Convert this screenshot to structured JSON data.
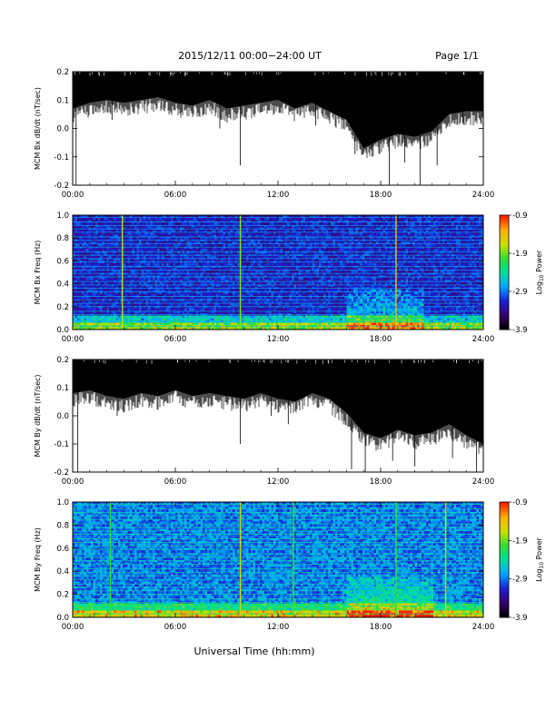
{
  "header": {
    "title": "2015/12/11  00:00−24:00 UT",
    "page": "Page 1/1"
  },
  "x_axis": {
    "label": "Universal Time (hh:mm)",
    "ticks": [
      "00:00",
      "06:00",
      "12:00",
      "18:00",
      "24:00"
    ]
  },
  "colors": {
    "trace": "#000000",
    "colormap": [
      "#000000",
      "#3a006e",
      "#1a1fd6",
      "#00a6ff",
      "#00e0a0",
      "#33dd33",
      "#c8e000",
      "#ffb000",
      "#ff2000"
    ]
  },
  "colorbar": {
    "ticks": [
      "-0.9",
      "-1.9",
      "-2.9",
      "-3.9"
    ],
    "label_prefix": "Log",
    "label_sub": "10",
    "label_suffix": " Power"
  },
  "chart_data": [
    {
      "type": "line",
      "ylabel": "MCM Bx dB/dt (nT/sec)",
      "xlim": [
        0,
        24
      ],
      "ylim": [
        -0.2,
        0.2
      ],
      "yticks": [
        "0.2",
        "0.1",
        "0.0",
        "-0.1",
        "-0.2"
      ],
      "grid": false,
      "upper_envelope": 0.2,
      "lower_envelope": {
        "x": [
          0,
          1,
          2,
          3,
          4,
          5,
          6,
          7,
          8,
          9,
          10,
          11,
          12,
          13,
          14,
          15,
          16,
          17,
          18,
          19,
          20,
          21,
          22,
          23,
          24
        ],
        "y": [
          0.07,
          0.09,
          0.1,
          0.09,
          0.1,
          0.11,
          0.09,
          0.08,
          0.1,
          0.07,
          0.08,
          0.09,
          0.1,
          0.07,
          0.09,
          0.06,
          0.03,
          -0.07,
          -0.04,
          -0.02,
          -0.03,
          -0.01,
          0.05,
          0.06,
          0.06
        ]
      },
      "spikes": [
        {
          "x": 0.2,
          "y": -0.2
        },
        {
          "x": 2.3,
          "y": 0.03
        },
        {
          "x": 4.2,
          "y": 0.06
        },
        {
          "x": 8.6,
          "y": 0.0
        },
        {
          "x": 9.8,
          "y": -0.13
        },
        {
          "x": 14.2,
          "y": 0.01
        },
        {
          "x": 16.5,
          "y": -0.09
        },
        {
          "x": 17.5,
          "y": -0.1
        },
        {
          "x": 18.5,
          "y": -0.2
        },
        {
          "x": 19.4,
          "y": -0.12
        },
        {
          "x": 20.3,
          "y": -0.2
        },
        {
          "x": 21.3,
          "y": -0.13
        },
        {
          "x": 22.8,
          "y": 0.02
        }
      ]
    },
    {
      "type": "heatmap",
      "ylabel": "MCM Bx Freq (Hz)",
      "xlim": [
        0,
        24
      ],
      "ylim": [
        0.0,
        1.0
      ],
      "yticks": [
        "1.0",
        "0.8",
        "0.6",
        "0.4",
        "0.2",
        "0.0"
      ],
      "zlim": [
        -3.9,
        -0.9
      ],
      "background_level": -3.2,
      "harmonic_line_freqs": [
        0.03,
        0.07,
        0.1,
        0.13,
        0.16,
        0.2,
        0.23,
        0.26,
        0.29,
        0.33,
        0.36,
        0.39,
        0.42,
        0.46,
        0.49,
        0.52,
        0.55,
        0.59,
        0.62,
        0.65,
        0.68,
        0.72,
        0.75,
        0.78,
        0.81,
        0.85,
        0.88,
        0.91,
        0.94,
        0.98
      ],
      "vertical_events": [
        {
          "t": 2.9,
          "level": -1.6
        },
        {
          "t": 9.8,
          "level": -1.8
        },
        {
          "t": 18.9,
          "level": -1.4
        }
      ],
      "active_interval": [
        16.0,
        20.5
      ]
    },
    {
      "type": "line",
      "ylabel": "MCM By dB/dt (nT/sec)",
      "xlim": [
        0,
        24
      ],
      "ylim": [
        -0.2,
        0.2
      ],
      "yticks": [
        "0.2",
        "0.1",
        "0.0",
        "-0.1",
        "-0.2"
      ],
      "grid": false,
      "upper_envelope": 0.2,
      "lower_envelope": {
        "x": [
          0,
          1,
          2,
          3,
          4,
          5,
          6,
          7,
          8,
          9,
          10,
          11,
          12,
          13,
          14,
          15,
          16,
          17,
          18,
          19,
          20,
          21,
          22,
          23,
          24
        ],
        "y": [
          0.08,
          0.09,
          0.07,
          0.06,
          0.08,
          0.07,
          0.09,
          0.07,
          0.08,
          0.07,
          0.06,
          0.08,
          0.06,
          0.05,
          0.08,
          0.06,
          0.01,
          -0.06,
          -0.08,
          -0.05,
          -0.07,
          -0.06,
          -0.03,
          -0.07,
          -0.1
        ]
      },
      "spikes": [
        {
          "x": 0.3,
          "y": -0.2
        },
        {
          "x": 2.6,
          "y": 0.0
        },
        {
          "x": 9.8,
          "y": -0.1
        },
        {
          "x": 11.6,
          "y": 0.0
        },
        {
          "x": 12.6,
          "y": -0.03
        },
        {
          "x": 16.3,
          "y": -0.19
        },
        {
          "x": 17.1,
          "y": -0.2
        },
        {
          "x": 18.7,
          "y": -0.16
        },
        {
          "x": 20.0,
          "y": -0.18
        },
        {
          "x": 22.2,
          "y": -0.15
        },
        {
          "x": 23.6,
          "y": -0.2
        }
      ]
    },
    {
      "type": "heatmap",
      "ylabel": "MCM By Freq (Hz)",
      "xlim": [
        0,
        24
      ],
      "ylim": [
        0.0,
        1.0
      ],
      "yticks": [
        "1.0",
        "0.8",
        "0.6",
        "0.4",
        "0.2",
        "0.0"
      ],
      "zlim": [
        -3.9,
        -0.9
      ],
      "background_level": -2.9,
      "harmonic_line_freqs": [
        0.03,
        0.07,
        0.1,
        0.13,
        0.16,
        0.2,
        0.23,
        0.26,
        0.29,
        0.33,
        0.36,
        0.39,
        0.42,
        0.46,
        0.49,
        0.52,
        0.55,
        0.59,
        0.62,
        0.65,
        0.68,
        0.72,
        0.75,
        0.78,
        0.81,
        0.85,
        0.88,
        0.91,
        0.94,
        0.98
      ],
      "vertical_events": [
        {
          "t": 2.2,
          "level": -2.0
        },
        {
          "t": 9.8,
          "level": -1.6
        },
        {
          "t": 12.9,
          "level": -2.0
        },
        {
          "t": 18.9,
          "level": -2.0
        },
        {
          "t": 21.8,
          "level": -1.6
        }
      ],
      "active_interval": [
        16.0,
        21.0
      ]
    }
  ]
}
